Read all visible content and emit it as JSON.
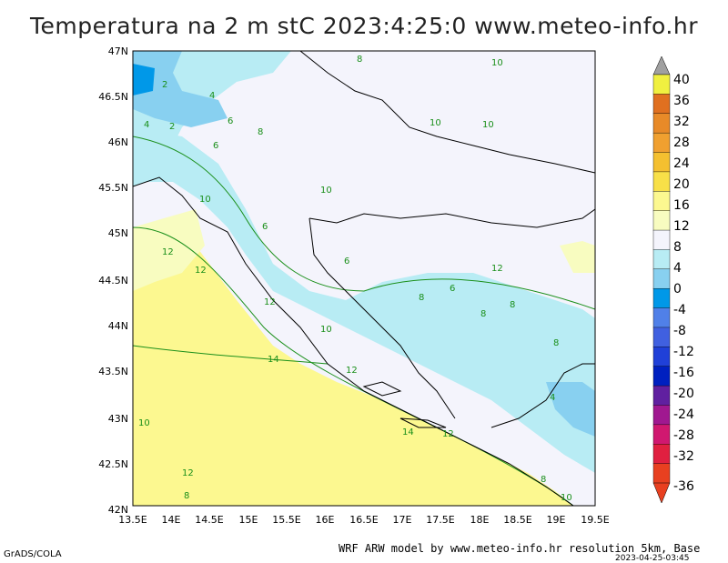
{
  "title": "Temperatura na 2 m stC 2023:4:25:0 www.meteo-info.hr",
  "map": {
    "lat_labels": [
      "47N",
      "46.5N",
      "46N",
      "45.5N",
      "45N",
      "44.5N",
      "44N",
      "43.5N",
      "43N",
      "42.5N",
      "42N"
    ],
    "lon_labels": [
      "13.5E",
      "14E",
      "14.5E",
      "15E",
      "15.5E",
      "16E",
      "16.5E",
      "17E",
      "17.5E",
      "18E",
      "18.5E",
      "19E",
      "19.5E"
    ],
    "contour_labels": [
      "2",
      "4",
      "2",
      "6",
      "4",
      "8",
      "6",
      "10",
      "8",
      "10",
      "10",
      "10",
      "12",
      "12",
      "10",
      "6",
      "6",
      "8",
      "12",
      "12",
      "10",
      "14",
      "12",
      "10",
      "14",
      "12",
      "8",
      "6",
      "8",
      "8",
      "4",
      "8",
      "10",
      "8",
      "12"
    ]
  },
  "colorbar": {
    "labels": [
      "40",
      "36",
      "32",
      "28",
      "24",
      "20",
      "16",
      "12",
      "8",
      "4",
      "0",
      "-4",
      "-8",
      "-12",
      "-16",
      "-20",
      "-24",
      "-28",
      "-32",
      "-36"
    ],
    "colors": [
      "#f0f040",
      "#e07020",
      "#e88a28",
      "#f0a030",
      "#f4c030",
      "#f8e048",
      "#fcf890",
      "#f8fcc0",
      "#f4f4fc",
      "#b8ecf4",
      "#88d0f0",
      "#0098e8",
      "#5080e8",
      "#4060e0",
      "#2040d8",
      "#0020c0",
      "#6020a0",
      "#a01890",
      "#d01870",
      "#e02040",
      "#e84020"
    ]
  },
  "footer": {
    "left": "GrADS/COLA",
    "right": "WRF ARW model by www.meteo-info.hr resolution 5km, Base",
    "date": "2023-04-25-03:45"
  }
}
